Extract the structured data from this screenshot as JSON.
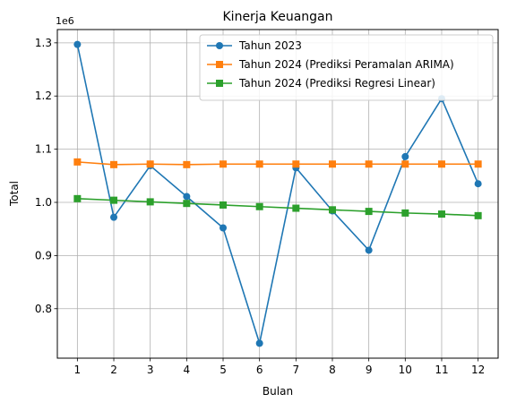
{
  "chart_data": {
    "type": "line",
    "title": "Kinerja Keuangan",
    "xlabel": "Bulan",
    "ylabel": "Total",
    "y_offset_label": "1e6",
    "x": [
      1,
      2,
      3,
      4,
      5,
      6,
      7,
      8,
      9,
      10,
      11,
      12
    ],
    "x_tick_labels": [
      "1",
      "2",
      "3",
      "4",
      "5",
      "6",
      "7",
      "8",
      "9",
      "10",
      "11",
      "12"
    ],
    "y_ticks": [
      0.8,
      0.9,
      1.0,
      1.1,
      1.2,
      1.3
    ],
    "y_tick_labels": [
      "0.8",
      "0.9",
      "1.0",
      "1.1",
      "1.2",
      "1.3"
    ],
    "xlim": [
      0.45,
      12.55
    ],
    "ylim": [
      0.707,
      1.325
    ],
    "y_scale_note": "values in units of 1e6",
    "grid": true,
    "legend_position": "upper right",
    "series": [
      {
        "name": "Tahun 2023",
        "color": "#1f77b4",
        "marker": "circle",
        "values": [
          1.297,
          0.972,
          1.069,
          1.011,
          0.952,
          0.735,
          1.065,
          0.984,
          0.91,
          1.086,
          1.195,
          1.035
        ]
      },
      {
        "name": "Tahun 2024 (Prediksi Peramalan ARIMA)",
        "color": "#ff7f0e",
        "marker": "square",
        "values": [
          1.076,
          1.071,
          1.072,
          1.071,
          1.072,
          1.072,
          1.072,
          1.072,
          1.072,
          1.072,
          1.072,
          1.072
        ]
      },
      {
        "name": "Tahun 2024 (Prediksi Regresi Linear)",
        "color": "#2ca02c",
        "marker": "square",
        "values": [
          1.007,
          1.004,
          1.001,
          0.998,
          0.995,
          0.992,
          0.989,
          0.986,
          0.983,
          0.98,
          0.978,
          0.975
        ]
      }
    ]
  }
}
